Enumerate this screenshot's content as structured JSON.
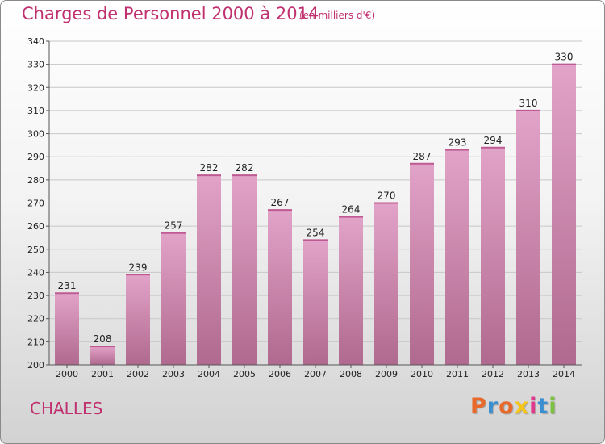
{
  "header": {
    "title": "Charges de Personnel 2000 à 2014",
    "subtitle": "(en milliers d'€)"
  },
  "footer": {
    "place_name": "CHALLES",
    "logo_text": "Proxiti",
    "logo_colors": [
      "#e8692a",
      "#3a8fd0",
      "#e8692a",
      "#f5c518",
      "#e03a8c",
      "#3a8fd0",
      "#7cc142"
    ]
  },
  "chart_data": {
    "type": "bar",
    "title": "Charges de Personnel 2000 à 2014",
    "subtitle": "(en milliers d'€)",
    "categories": [
      "2000",
      "2001",
      "2002",
      "2003",
      "2004",
      "2005",
      "2006",
      "2007",
      "2008",
      "2009",
      "2010",
      "2011",
      "2012",
      "2013",
      "2014"
    ],
    "values": [
      231,
      208,
      239,
      257,
      282,
      282,
      267,
      254,
      264,
      270,
      287,
      293,
      294,
      310,
      330
    ],
    "ylim": [
      200,
      340
    ],
    "yticks": [
      200,
      210,
      220,
      230,
      240,
      250,
      260,
      270,
      280,
      290,
      300,
      310,
      320,
      330,
      340
    ],
    "grid": true,
    "bar_color_top": "#e2a3c8",
    "bar_color_bottom": "#b0698f"
  }
}
